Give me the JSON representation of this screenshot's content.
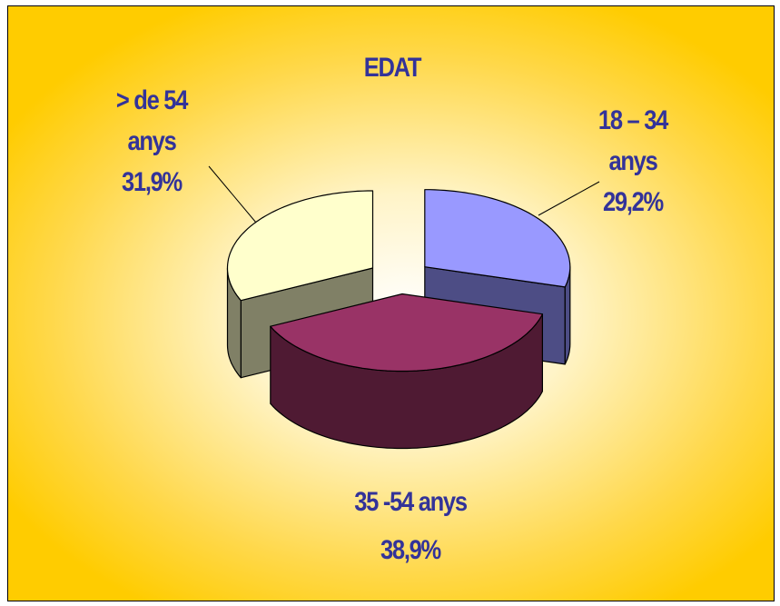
{
  "chart_data": {
    "type": "pie",
    "title": "EDAT",
    "categories": [
      "18 – 34 anys",
      "35 -54 anys",
      "> de 54 anys"
    ],
    "values": [
      29.2,
      38.9,
      31.9
    ],
    "value_labels": [
      "29,2%",
      "38,9%",
      "31,9%"
    ],
    "colors": [
      "#9999ff",
      "#993366",
      "#ffffcc"
    ],
    "side_colors": [
      "#4d4d85",
      "#4f1a33",
      "#808066"
    ]
  }
}
